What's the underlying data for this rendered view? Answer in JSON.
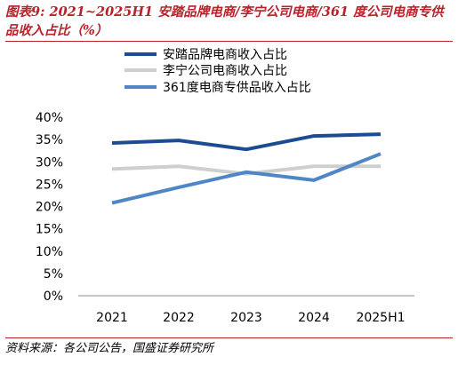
{
  "figure": {
    "title": "图表9:  2021~2025H1 安踏品牌电商/李宁公司电商/361 度公司电商专供品收入占比（%）",
    "source": "资料来源：各公司公告，国盛证券研究所"
  },
  "colors": {
    "title": "#b8222a",
    "series_anta": "#1b4b91",
    "series_lining": "#cfcfcf",
    "series_361": "#4e86c6"
  },
  "chart_data": {
    "type": "line",
    "categories": [
      "2021",
      "2022",
      "2023",
      "2024",
      "2025H1"
    ],
    "y_tick_labels": [
      "40%",
      "35%",
      "30%",
      "25%",
      "20%",
      "15%",
      "10%",
      "5%",
      "0%"
    ],
    "ylim": [
      0,
      40
    ],
    "y_unit": "%",
    "grid": false,
    "legend_position": "top-center",
    "series": [
      {
        "name": "安踏品牌电商收入占比",
        "values": [
          34.2,
          34.8,
          32.8,
          35.8,
          36.2
        ]
      },
      {
        "name": "李宁公司电商收入占比",
        "values": [
          28.4,
          29.0,
          27.3,
          29.0,
          29.0
        ]
      },
      {
        "name": "361度电商专供品收入占比",
        "values": [
          20.8,
          24.3,
          27.7,
          25.9,
          31.8
        ]
      }
    ]
  }
}
